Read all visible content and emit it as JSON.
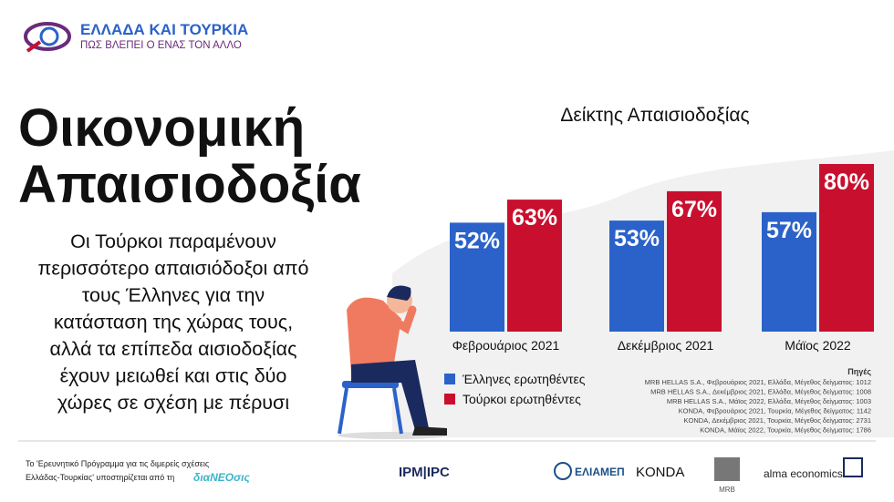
{
  "logo": {
    "title": "ΕΛΛΑΔΑ ΚΑΙ ΤΟΥΡΚΙΑ",
    "subtitle": "ΠΩΣ ΒΛΕΠΕΙ Ο ΕΝΑΣ ΤΟΝ ΑΛΛΟ"
  },
  "headline": [
    "Οικονομική",
    "Απαισιοδοξία"
  ],
  "intro": [
    "Οι Τούρκοι παραμένουν",
    "περισσότερο απαισιόδοξοι από",
    "τους Έλληνες για την",
    "κατάσταση της χώρας τους,",
    "αλλά τα επίπεδα αισιοδοξίας",
    "έχουν μειωθεί και στις δύο",
    "χώρες σε σχέση με πέρυσι"
  ],
  "chart_data": {
    "type": "bar",
    "title": "Δείκτης Απαισιοδοξίας",
    "categories": [
      "Φεβρουάριος 2021",
      "Δεκέμβριος 2021",
      "Μάϊος 2022"
    ],
    "series": [
      {
        "name": "Έλληνες ερωτηθέντες",
        "color": "#2b62c9",
        "values": [
          52,
          53,
          57
        ],
        "value_labels": [
          "52%",
          "53%",
          "57%"
        ]
      },
      {
        "name": "Τούρκοι ερωτηθέντες",
        "color": "#c8102e",
        "values": [
          63,
          67,
          80
        ],
        "value_labels": [
          "63%",
          "67%",
          "80%"
        ]
      }
    ]
  },
  "sources": {
    "title": "Πηγές",
    "lines": [
      "MRB HELLAS S.A., Φεβρουάριος 2021, Ελλάδα, Μέγεθος δείγματος: 1012",
      "MRB HELLAS S.A., Δεκέμβριος 2021, Ελλάδα, Μέγεθος δείγματος: 1008",
      "MRB HELLAS S.A., Μάϊος 2022, Ελλάδα, Μέγεθος δείγματος: 1003",
      "KONDA, Φεβρουάριος 2021, Τουρκία, Μέγεθος δείγματος: 1142",
      "KONDA, Δεκέμβριος 2021, Τουρκία, Μέγεθος δείγματος: 2731",
      "KONDA, Μάϊος 2022, Τουρκία, Μέγεθος δείγματος: 1786"
    ]
  },
  "footer": {
    "note": [
      "Το 'Ερευνητικό Πρόγραμμα για τις διμερείς σχέσεις",
      "Ελλάδας-Τουρκίας' υποστηρίζεται από τη"
    ],
    "sponsor": "διαNEOσις",
    "partners": [
      "IPM|IPC",
      "ΕΛΙΑΜΕΠ",
      "KONDA",
      "MRB",
      "alma economics"
    ]
  }
}
